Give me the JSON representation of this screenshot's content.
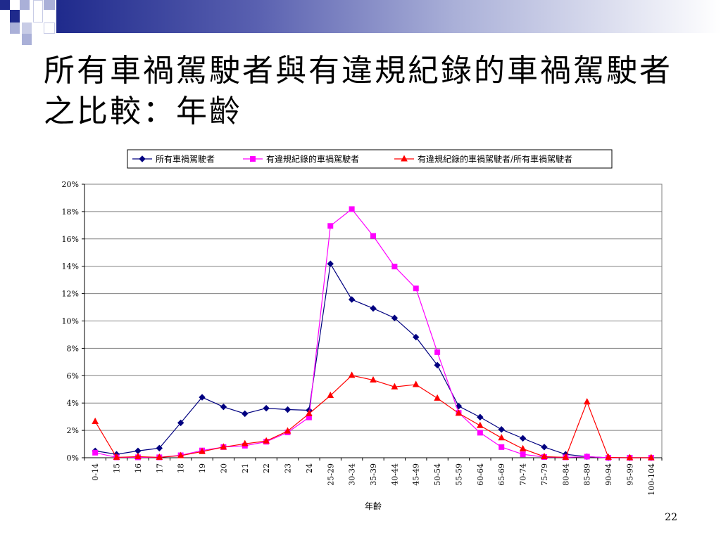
{
  "slide": {
    "title": "所有車禍駕駛者與有違規紀錄的車禍駕駛者之比較：年齡",
    "page_number": "22",
    "theme_colors": {
      "primary": "#1f2a8c",
      "light": "#aab0d8"
    }
  },
  "chart_data": {
    "type": "line",
    "title": "",
    "xlabel": "年齡",
    "ylabel": "",
    "ylim": [
      0,
      0.2
    ],
    "ytick_step": 0.02,
    "ytick_labels": [
      "0%",
      "2%",
      "4%",
      "6%",
      "8%",
      "10%",
      "12%",
      "14%",
      "16%",
      "18%",
      "20%"
    ],
    "grid": true,
    "legend_position": "top",
    "categories": [
      "0-14",
      "15",
      "16",
      "17",
      "18",
      "19",
      "20",
      "21",
      "22",
      "23",
      "24",
      "25-29",
      "30-34",
      "35-39",
      "40-44",
      "45-49",
      "50-54",
      "55-59",
      "60-64",
      "65-69",
      "70-74",
      "75-79",
      "80-84",
      "85-89",
      "90-94",
      "95-99",
      "100-104"
    ],
    "series": [
      {
        "name": "所有車禍駕駛者",
        "color": "#000080",
        "marker": "diamond",
        "values": [
          0.005,
          0.0025,
          0.005,
          0.007,
          0.0255,
          0.0442,
          0.0372,
          0.0322,
          0.0362,
          0.0352,
          0.0347,
          0.1418,
          0.1157,
          0.1092,
          0.1022,
          0.0882,
          0.0677,
          0.0377,
          0.0297,
          0.0207,
          0.0142,
          0.0078,
          0.0025,
          0.0008,
          0.0,
          0.0,
          0.0
        ]
      },
      {
        "name": "有違規紀錄的車禍駕駛者",
        "color": "#ff00ff",
        "marker": "square",
        "values": [
          0.0037,
          0.0003,
          0.0003,
          0.0003,
          0.0018,
          0.0053,
          0.0078,
          0.0088,
          0.0117,
          0.0185,
          0.0295,
          0.1695,
          0.1818,
          0.1622,
          0.1398,
          0.1238,
          0.0772,
          0.0328,
          0.0183,
          0.0078,
          0.0025,
          0.0005,
          0.0003,
          0.0008,
          0.0,
          0.0,
          0.0
        ]
      },
      {
        "name": "有違規紀錄的車禍駕駛者/所有車禍駕駛者",
        "color": "#ff0000",
        "marker": "triangle",
        "values": [
          0.0265,
          0.0003,
          0.0008,
          0.0003,
          0.0015,
          0.0045,
          0.0078,
          0.0102,
          0.0122,
          0.0195,
          0.0322,
          0.0455,
          0.0602,
          0.0568,
          0.0518,
          0.0535,
          0.0435,
          0.0325,
          0.0235,
          0.0145,
          0.0065,
          0.0008,
          0.0003,
          0.0408,
          0.0003,
          0.0,
          0.0
        ]
      }
    ]
  }
}
